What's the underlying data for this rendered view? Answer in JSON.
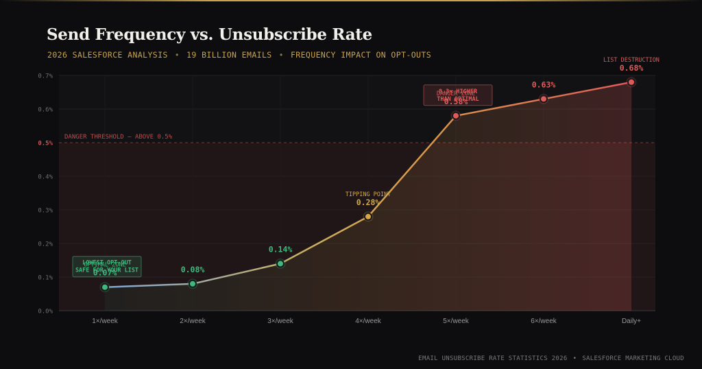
{
  "header": {
    "title": "Send Frequency vs. Unsubscribe Rate",
    "subtitle_parts": [
      "2026 SALESFORCE ANALYSIS",
      "19 BILLION EMAILS",
      "FREQUENCY IMPACT ON OPT-OUTS"
    ],
    "subtitle_separator": "•"
  },
  "footer": {
    "parts": [
      "EMAIL UNSUBSCRIBE RATE STATISTICS 2026",
      "SALESFORCE MARKETING CLOUD"
    ],
    "separator": "•"
  },
  "colors": {
    "background": "#0d0d0f",
    "gold": "#c9a44c",
    "green": "#3dba7d",
    "yellow": "#d4a844",
    "red": "#e05a5a",
    "danger": "#d05252"
  },
  "chart_data": {
    "type": "line",
    "title": "Send Frequency vs. Unsubscribe Rate",
    "xlabel": "",
    "ylabel": "",
    "categories": [
      "1×/week",
      "2×/week",
      "3×/week",
      "4×/week",
      "5×/week",
      "6×/week",
      "Daily+"
    ],
    "series": [
      {
        "values": [
          0.07,
          0.08,
          0.14,
          0.28,
          0.58,
          0.63,
          0.68
        ]
      }
    ],
    "value_labels": [
      "0.07%",
      "0.08%",
      "0.14%",
      "0.28%",
      "0.58%",
      "0.63%",
      "0.68%"
    ],
    "point_tags": [
      "OPTIMAL ZONE",
      "",
      "",
      "TIPPING POINT",
      "DANGER ZONE",
      "",
      "LIST DESTRUCTION"
    ],
    "point_colors": [
      "green",
      "green",
      "green",
      "yellow",
      "red",
      "red",
      "red"
    ],
    "callouts": [
      {
        "index": 0,
        "lines": [
          "LOWEST OPT-OUT",
          "SAFE FOR YOUR LIST"
        ],
        "color": "green"
      },
      {
        "index": 4,
        "lines": [
          "8.3× HIGHER",
          "THAN OPTIMAL"
        ],
        "color": "red"
      }
    ],
    "yticks": [
      0,
      0.1,
      0.2,
      0.3,
      0.4,
      0.5,
      0.6,
      0.7
    ],
    "ytick_labels": [
      "0.0%",
      "0.1%",
      "0.2%",
      "0.3%",
      "0.4%",
      "0.5%",
      "0.6%",
      "0.7%"
    ],
    "ylim": [
      0,
      0.7
    ],
    "threshold": {
      "value": 0.5,
      "label": "DANGER THRESHOLD — ABOVE 0.5%"
    },
    "grid": true,
    "legend": "none"
  }
}
